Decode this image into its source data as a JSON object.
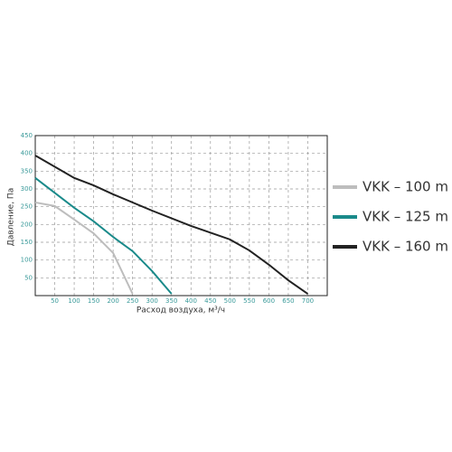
{
  "chart_data": {
    "type": "line",
    "xlabel": "Расход воздуха, м³/ч",
    "ylabel": "Давление, Па",
    "xlim": [
      0,
      750
    ],
    "ylim": [
      0,
      450
    ],
    "xticks": [
      50,
      100,
      150,
      200,
      250,
      300,
      350,
      400,
      450,
      500,
      550,
      600,
      650,
      700
    ],
    "yticks": [
      50,
      100,
      150,
      200,
      250,
      300,
      350,
      400,
      450
    ],
    "grid": true,
    "legend": "right",
    "series": [
      {
        "name": "VKK – 100 m",
        "color": "#bdbdbd",
        "x": [
          0,
          50,
          100,
          150,
          200,
          250
        ],
        "values": [
          262,
          252,
          214,
          175,
          120,
          5
        ]
      },
      {
        "name": "VKK – 125 m",
        "color": "#1a8a8a",
        "x": [
          0,
          100,
          150,
          200,
          250,
          300,
          350
        ],
        "values": [
          331,
          247,
          209,
          165,
          125,
          69,
          5
        ]
      },
      {
        "name": "VKK – 160 m",
        "color": "#222222",
        "x": [
          0,
          100,
          150,
          200,
          300,
          400,
          500,
          550,
          600,
          650,
          700
        ],
        "values": [
          394,
          331,
          310,
          285,
          239,
          196,
          158,
          127,
          87,
          43,
          5
        ]
      }
    ]
  }
}
